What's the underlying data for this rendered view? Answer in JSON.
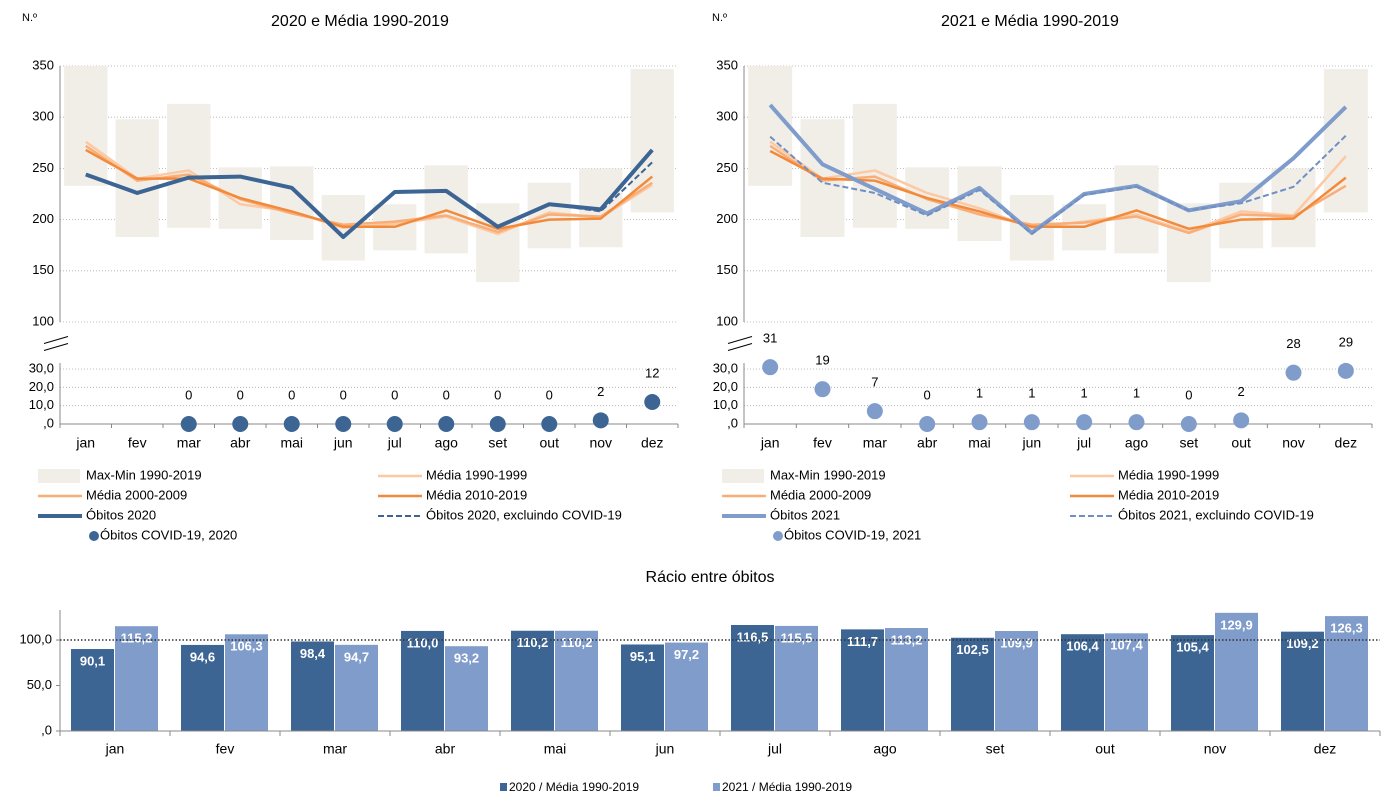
{
  "chart_data": [
    {
      "type": "line",
      "title": "2020 e Média 1990-2019",
      "y_label": "N.º",
      "categories": [
        "jan",
        "fev",
        "mar",
        "abr",
        "mai",
        "jun",
        "jul",
        "ago",
        "set",
        "out",
        "nov",
        "dez"
      ],
      "ylim": [
        100,
        350
      ],
      "yticks": [
        100,
        150,
        200,
        250,
        300,
        350
      ],
      "lower_ylim": [
        0,
        30
      ],
      "lower_yticks": [
        {
          "value": 0,
          "label": ",0"
        },
        {
          "value": 10,
          "label": "10,0"
        },
        {
          "value": 20,
          "label": "20,0"
        },
        {
          "value": 30,
          "label": "30,0"
        }
      ],
      "grid": true,
      "series": [
        {
          "name": "Max-Min 1990-2019",
          "type": "range",
          "color": "#f1eee8",
          "values": [
            [
              233,
              350
            ],
            [
              183,
              298
            ],
            [
              192,
              313
            ],
            [
              191,
              251
            ],
            [
              180,
              252
            ],
            [
              160,
              224
            ],
            [
              170,
              215
            ],
            [
              167,
              253
            ],
            [
              139,
              216
            ],
            [
              172,
              236
            ],
            [
              173,
              250
            ],
            [
              207,
              347
            ]
          ]
        },
        {
          "name": "Média 1990-1999",
          "type": "line",
          "color": "#fcc9a3",
          "values": [
            276,
            240,
            248,
            215,
            208,
            192,
            196,
            203,
            186,
            207,
            202,
            234
          ]
        },
        {
          "name": "Média 2000-2009",
          "type": "line",
          "color": "#f9ae78",
          "values": [
            272,
            238,
            244,
            220,
            206,
            195,
            198,
            204,
            188,
            205,
            203,
            236
          ]
        },
        {
          "name": "Média 2010-2019",
          "type": "line",
          "color": "#f28a3c",
          "values": [
            268,
            240,
            240,
            221,
            208,
            193,
            193,
            209,
            191,
            200,
            201,
            242
          ]
        },
        {
          "name": "Óbitos 2020",
          "type": "line",
          "color": "#3d6594",
          "values": [
            244,
            226,
            241,
            242,
            231,
            183,
            227,
            228,
            193,
            215,
            210,
            268
          ]
        },
        {
          "name": "Óbitos 2020, excluindo COVID-19",
          "type": "line",
          "dashed": true,
          "color": "#3d6594",
          "values": [
            null,
            null,
            null,
            null,
            null,
            null,
            null,
            null,
            null,
            215,
            208,
            256
          ]
        },
        {
          "name": "Óbitos COVID-19, 2020",
          "type": "scatter",
          "color": "#3d6594",
          "values": [
            null,
            null,
            0,
            0,
            0,
            0,
            0,
            0,
            0,
            0,
            2,
            12
          ]
        }
      ]
    },
    {
      "type": "line",
      "title": "2021 e Média 1990-2019",
      "y_label": "N.º",
      "categories": [
        "jan",
        "fev",
        "mar",
        "abr",
        "mai",
        "jun",
        "jul",
        "ago",
        "set",
        "out",
        "nov",
        "dez"
      ],
      "ylim": [
        100,
        350
      ],
      "yticks": [
        100,
        150,
        200,
        250,
        300,
        350
      ],
      "lower_ylim": [
        0,
        30
      ],
      "lower_yticks": [
        {
          "value": 0,
          "label": ",0"
        },
        {
          "value": 10,
          "label": "10,0"
        },
        {
          "value": 20,
          "label": "20,0"
        },
        {
          "value": 30,
          "label": "30,0"
        }
      ],
      "grid": true,
      "series": [
        {
          "name": "Max-Min 1990-2019",
          "type": "range",
          "color": "#f1eee8",
          "values": [
            [
              233,
              350
            ],
            [
              183,
              298
            ],
            [
              192,
              313
            ],
            [
              191,
              251
            ],
            [
              179,
              252
            ],
            [
              160,
              224
            ],
            [
              170,
              215
            ],
            [
              167,
              253
            ],
            [
              139,
              216
            ],
            [
              172,
              236
            ],
            [
              173,
              250
            ],
            [
              207,
              347
            ]
          ]
        },
        {
          "name": "Média 1990-1999",
          "type": "line",
          "color": "#fcc9a3",
          "values": [
            276,
            240,
            248,
            226,
            211,
            192,
            198,
            205,
            188,
            208,
            204,
            262
          ]
        },
        {
          "name": "Média 2000-2009",
          "type": "line",
          "color": "#f9ae78",
          "values": [
            272,
            238,
            242,
            220,
            205,
            195,
            197,
            203,
            187,
            205,
            203,
            233
          ]
        },
        {
          "name": "Média 2010-2019",
          "type": "line",
          "color": "#f28a3c",
          "values": [
            267,
            240,
            238,
            221,
            208,
            193,
            193,
            209,
            191,
            200,
            201,
            241
          ]
        },
        {
          "name": "Óbitos 2021",
          "type": "line",
          "color": "#7f9ccb",
          "values": [
            312,
            254,
            230,
            206,
            231,
            187,
            225,
            233,
            209,
            218,
            260,
            310
          ]
        },
        {
          "name": "Óbitos 2021, excluindo COVID-19",
          "type": "line",
          "dashed": true,
          "color": "#6f8fc4",
          "values": [
            281,
            236,
            226,
            204,
            229,
            186,
            224,
            232,
            209,
            216,
            232,
            282
          ]
        },
        {
          "name": "Óbitos COVID-19, 2021",
          "type": "scatter",
          "color": "#7f9ccb",
          "values": [
            31,
            19,
            7,
            0,
            1,
            1,
            1,
            1,
            0,
            2,
            28,
            29
          ]
        }
      ]
    },
    {
      "type": "bar",
      "title": "Rácio entre óbitos",
      "categories": [
        "jan",
        "fev",
        "mar",
        "abr",
        "mai",
        "jun",
        "jul",
        "ago",
        "set",
        "out",
        "nov",
        "dez"
      ],
      "ylim": [
        0,
        133
      ],
      "yticks": [
        {
          "value": 0,
          "label": ",0"
        },
        {
          "value": 50,
          "label": "50,0"
        },
        {
          "value": 100,
          "label": "100,0"
        }
      ],
      "reference_line": 100,
      "series": [
        {
          "name": "2020 / Média 1990-2019",
          "color": "#3d6594",
          "values": [
            90.1,
            94.6,
            98.4,
            110.0,
            110.2,
            95.1,
            116.5,
            111.7,
            102.5,
            106.4,
            105.4,
            109.2
          ],
          "value_labels": [
            "90,1",
            "94,6",
            "98,4",
            "110,0",
            "110,2",
            "95,1",
            "116,5",
            "111,7",
            "102,5",
            "106,4",
            "105,4",
            "109,2"
          ]
        },
        {
          "name": "2021 / Média 1990-2019",
          "color": "#7f9ccb",
          "values": [
            115.2,
            106.3,
            94.7,
            93.2,
            110.2,
            97.2,
            115.5,
            113.2,
            109.9,
            107.4,
            129.9,
            126.3
          ],
          "value_labels": [
            "115,2",
            "106,3",
            "94,7",
            "93,2",
            "110,2",
            "97,2",
            "115,5",
            "113,2",
            "109,9",
            "107,4",
            "129,9",
            "126,3"
          ]
        }
      ]
    }
  ]
}
